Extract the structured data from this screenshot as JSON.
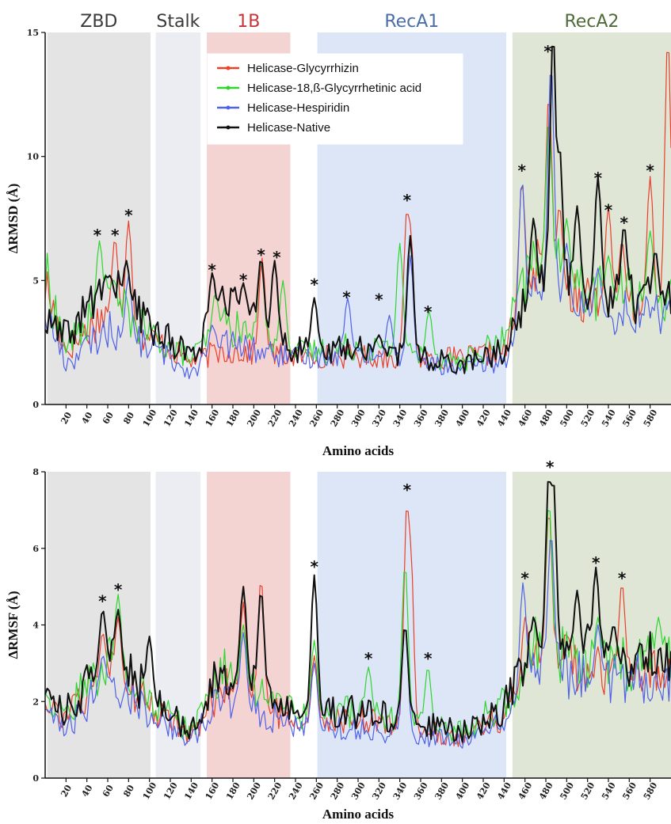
{
  "chart_data": [
    {
      "type": "line",
      "xlabel": "Amino acids",
      "ylabel": "ΔRMSD (Å)",
      "xlim": [
        0,
        600
      ],
      "ylim": [
        0,
        15
      ],
      "x_ticks": [
        20,
        40,
        60,
        80,
        100,
        120,
        140,
        160,
        180,
        200,
        220,
        240,
        260,
        280,
        300,
        320,
        340,
        360,
        380,
        400,
        420,
        440,
        460,
        480,
        500,
        520,
        540,
        560,
        580
      ],
      "y_ticks": [
        0,
        5,
        10,
        15
      ],
      "regions": [
        {
          "label": "ZBD",
          "start": 2,
          "end": 101,
          "color": "#e4e4e4",
          "label_color": "#3a3a3a"
        },
        {
          "label": "Stalk",
          "start": 106,
          "end": 149,
          "color": "#ebedf3",
          "label_color": "#3a3a3a"
        },
        {
          "label": "1B",
          "start": 155,
          "end": 235,
          "color": "#f4d3d3",
          "label_color": "#c8343a"
        },
        {
          "label": "RecA1",
          "start": 261,
          "end": 442,
          "color": "#dce6f7",
          "label_color": "#4a6fa8"
        },
        {
          "label": "RecA2",
          "start": 448,
          "end": 600,
          "color": "#dfe6d6",
          "label_color": "#4f6b3a"
        }
      ],
      "legend_position": "top-center",
      "series": [
        {
          "name": "Helicase-Glycyrrhizin",
          "color": "#e8402a",
          "peaks": [
            [
              67,
              6.7
            ],
            [
              80,
              7.4
            ],
            [
              208,
              5.9
            ],
            [
              347,
              8.0
            ],
            [
              350,
              7.3
            ],
            [
              457,
              9.0
            ],
            [
              483,
              12.5
            ],
            [
              493,
              8.0
            ],
            [
              540,
              8.0
            ],
            [
              553,
              6.6
            ],
            [
              580,
              9.2
            ],
            [
              597,
              14.8
            ]
          ],
          "base": [
            [
              0,
              4.5
            ],
            [
              20,
              2.0
            ],
            [
              60,
              3.5
            ],
            [
              100,
              2.5
            ],
            [
              140,
              1.6
            ],
            [
              170,
              2.0
            ],
            [
              240,
              1.8
            ],
            [
              300,
              1.8
            ],
            [
              400,
              1.7
            ],
            [
              440,
              2.0
            ],
            [
              470,
              5.0
            ],
            [
              520,
              4.0
            ],
            [
              600,
              3.5
            ]
          ]
        },
        {
          "name": "Helicase-18,ß-Glycyrrhetinic acid",
          "color": "#2fd42f",
          "peaks": [
            [
              52,
              6.6
            ],
            [
              65,
              5.0
            ],
            [
              163,
              4.5
            ],
            [
              207,
              5.8
            ],
            [
              228,
              5.0
            ],
            [
              340,
              6.5
            ],
            [
              368,
              3.8
            ],
            [
              483,
              11.5
            ],
            [
              500,
              7.5
            ],
            [
              540,
              6.0
            ],
            [
              580,
              7.0
            ]
          ],
          "base": [
            [
              0,
              4.8
            ],
            [
              20,
              2.1
            ],
            [
              60,
              4.0
            ],
            [
              100,
              2.6
            ],
            [
              140,
              1.7
            ],
            [
              170,
              3.0
            ],
            [
              240,
              1.9
            ],
            [
              300,
              2.2
            ],
            [
              400,
              1.6
            ],
            [
              440,
              2.4
            ],
            [
              470,
              5.5
            ],
            [
              520,
              4.2
            ],
            [
              600,
              4.0
            ]
          ]
        },
        {
          "name": "Helicase-Hespiridin",
          "color": "#4f62e8",
          "peaks": [
            [
              80,
              5.2
            ],
            [
              160,
              3.2
            ],
            [
              290,
              4.3
            ],
            [
              330,
              3.6
            ],
            [
              350,
              6.0
            ],
            [
              457,
              9.1
            ],
            [
              485,
              13.8
            ],
            [
              500,
              6.5
            ],
            [
              530,
              5.5
            ]
          ],
          "base": [
            [
              0,
              3.5
            ],
            [
              20,
              1.5
            ],
            [
              60,
              2.8
            ],
            [
              100,
              2.2
            ],
            [
              140,
              1.2
            ],
            [
              170,
              2.3
            ],
            [
              240,
              1.7
            ],
            [
              300,
              2.0
            ],
            [
              400,
              1.3
            ],
            [
              440,
              1.6
            ],
            [
              470,
              4.0
            ],
            [
              520,
              3.5
            ],
            [
              600,
              3.4
            ]
          ]
        },
        {
          "name": "Helicase-Native",
          "color": "#111111",
          "peaks": [
            [
              62,
              5.2
            ],
            [
              78,
              5.8
            ],
            [
              160,
              5.3
            ],
            [
              190,
              4.9
            ],
            [
              207,
              5.9
            ],
            [
              220,
              5.8
            ],
            [
              258,
              4.3
            ],
            [
              320,
              2.8
            ],
            [
              350,
              6.8
            ],
            [
              468,
              7.5
            ],
            [
              487,
              15.0
            ],
            [
              493,
              10.5
            ],
            [
              510,
              8.0
            ],
            [
              530,
              9.2
            ],
            [
              555,
              7.2
            ],
            [
              585,
              6.2
            ]
          ],
          "base": [
            [
              0,
              3.0
            ],
            [
              20,
              2.5
            ],
            [
              60,
              4.5
            ],
            [
              100,
              3.0
            ],
            [
              140,
              1.8
            ],
            [
              170,
              3.8
            ],
            [
              240,
              2.0
            ],
            [
              300,
              2.1
            ],
            [
              400,
              1.5
            ],
            [
              440,
              2.0
            ],
            [
              470,
              4.5
            ],
            [
              520,
              4.2
            ],
            [
              600,
              3.8
            ]
          ]
        }
      ],
      "annotations": [
        {
          "x": 50,
          "y": 6.8,
          "text": "*"
        },
        {
          "x": 67,
          "y": 6.8,
          "text": "*"
        },
        {
          "x": 80,
          "y": 7.6,
          "text": "*"
        },
        {
          "x": 160,
          "y": 5.4,
          "text": "*"
        },
        {
          "x": 190,
          "y": 5.0,
          "text": "*"
        },
        {
          "x": 207,
          "y": 6.0,
          "text": "*"
        },
        {
          "x": 222,
          "y": 5.9,
          "text": "*"
        },
        {
          "x": 258,
          "y": 4.8,
          "text": "*"
        },
        {
          "x": 289,
          "y": 4.3,
          "text": "*"
        },
        {
          "x": 320,
          "y": 4.2,
          "text": "*"
        },
        {
          "x": 347,
          "y": 8.2,
          "text": "*"
        },
        {
          "x": 367,
          "y": 3.7,
          "text": "*"
        },
        {
          "x": 457,
          "y": 9.4,
          "text": "*"
        },
        {
          "x": 482,
          "y": 14.2,
          "text": "*"
        },
        {
          "x": 530,
          "y": 9.1,
          "text": "*"
        },
        {
          "x": 540,
          "y": 7.8,
          "text": "*"
        },
        {
          "x": 555,
          "y": 7.3,
          "text": "*"
        },
        {
          "x": 580,
          "y": 9.4,
          "text": "*"
        }
      ]
    },
    {
      "type": "line",
      "xlabel": "Amino acids",
      "ylabel": "ΔRMSF (Å)",
      "xlim": [
        0,
        600
      ],
      "ylim": [
        0,
        8
      ],
      "x_ticks": [
        20,
        40,
        60,
        80,
        100,
        120,
        140,
        160,
        180,
        200,
        220,
        240,
        260,
        280,
        300,
        320,
        340,
        360,
        380,
        400,
        420,
        440,
        460,
        480,
        500,
        520,
        540,
        560,
        580
      ],
      "y_ticks": [
        0,
        2,
        4,
        6,
        8
      ],
      "series": [
        {
          "name": "Helicase-Glycyrrhizin",
          "color": "#e8402a",
          "peaks": [
            [
              55,
              3.8
            ],
            [
              70,
              4.2
            ],
            [
              190,
              4.6
            ],
            [
              207,
              5.2
            ],
            [
              258,
              3.2
            ],
            [
              347,
              7.3
            ],
            [
              350,
              6.3
            ],
            [
              460,
              4.2
            ],
            [
              483,
              7.0
            ],
            [
              553,
              5.1
            ]
          ],
          "base": [
            [
              0,
              1.7
            ],
            [
              20,
              1.4
            ],
            [
              60,
              2.6
            ],
            [
              100,
              1.8
            ],
            [
              140,
              1.0
            ],
            [
              170,
              2.3
            ],
            [
              240,
              1.3
            ],
            [
              300,
              1.4
            ],
            [
              400,
              1.0
            ],
            [
              440,
              1.5
            ],
            [
              470,
              3.0
            ],
            [
              520,
              2.6
            ],
            [
              600,
              2.5
            ]
          ]
        },
        {
          "name": "Helicase-18,ß-Glycyrrhetinic acid",
          "color": "#2fd42f",
          "peaks": [
            [
              70,
              4.8
            ],
            [
              190,
              4.0
            ],
            [
              258,
              3.6
            ],
            [
              310,
              2.9
            ],
            [
              345,
              5.6
            ],
            [
              367,
              2.9
            ],
            [
              483,
              7.2
            ],
            [
              530,
              4.2
            ],
            [
              588,
              4.2
            ]
          ],
          "base": [
            [
              0,
              1.9
            ],
            [
              20,
              1.6
            ],
            [
              60,
              2.9
            ],
            [
              100,
              1.9
            ],
            [
              140,
              1.1
            ],
            [
              170,
              2.6
            ],
            [
              240,
              1.5
            ],
            [
              300,
              1.6
            ],
            [
              400,
              1.1
            ],
            [
              440,
              1.8
            ],
            [
              470,
              3.2
            ],
            [
              520,
              2.8
            ],
            [
              600,
              2.8
            ]
          ]
        },
        {
          "name": "Helicase-Hespiridin",
          "color": "#4f62e8",
          "peaks": [
            [
              55,
              3.2
            ],
            [
              190,
              3.8
            ],
            [
              258,
              3.0
            ],
            [
              345,
              4.0
            ],
            [
              458,
              5.1
            ],
            [
              485,
              6.4
            ],
            [
              530,
              4.0
            ]
          ],
          "base": [
            [
              0,
              1.5
            ],
            [
              20,
              1.1
            ],
            [
              60,
              2.4
            ],
            [
              100,
              1.6
            ],
            [
              140,
              0.9
            ],
            [
              170,
              2.0
            ],
            [
              240,
              1.2
            ],
            [
              300,
              1.2
            ],
            [
              400,
              0.9
            ],
            [
              440,
              1.3
            ],
            [
              470,
              2.8
            ],
            [
              520,
              2.4
            ],
            [
              600,
              2.4
            ]
          ]
        },
        {
          "name": "Helicase-Native",
          "color": "#111111",
          "peaks": [
            [
              55,
              4.4
            ],
            [
              70,
              4.4
            ],
            [
              100,
              3.7
            ],
            [
              190,
              5.0
            ],
            [
              207,
              4.9
            ],
            [
              258,
              5.3
            ],
            [
              345,
              4.0
            ],
            [
              468,
              4.2
            ],
            [
              483,
              8.0
            ],
            [
              487,
              7.9
            ],
            [
              510,
              4.9
            ],
            [
              528,
              5.5
            ],
            [
              545,
              4.0
            ]
          ],
          "base": [
            [
              0,
              1.8
            ],
            [
              20,
              1.6
            ],
            [
              60,
              3.0
            ],
            [
              100,
              2.0
            ],
            [
              140,
              1.1
            ],
            [
              170,
              2.7
            ],
            [
              240,
              1.5
            ],
            [
              300,
              1.6
            ],
            [
              400,
              1.1
            ],
            [
              440,
              1.7
            ],
            [
              470,
              3.1
            ],
            [
              520,
              3.0
            ],
            [
              600,
              2.8
            ]
          ]
        }
      ],
      "annotations": [
        {
          "x": 55,
          "y": 4.6,
          "text": "*"
        },
        {
          "x": 70,
          "y": 4.9,
          "text": "*"
        },
        {
          "x": 258,
          "y": 5.5,
          "text": "*"
        },
        {
          "x": 310,
          "y": 3.1,
          "text": "*"
        },
        {
          "x": 347,
          "y": 7.5,
          "text": "*"
        },
        {
          "x": 367,
          "y": 3.1,
          "text": "*"
        },
        {
          "x": 460,
          "y": 5.2,
          "text": "*"
        },
        {
          "x": 484,
          "y": 8.1,
          "text": "*"
        },
        {
          "x": 528,
          "y": 5.6,
          "text": "*"
        },
        {
          "x": 553,
          "y": 5.2,
          "text": "*"
        }
      ]
    }
  ]
}
